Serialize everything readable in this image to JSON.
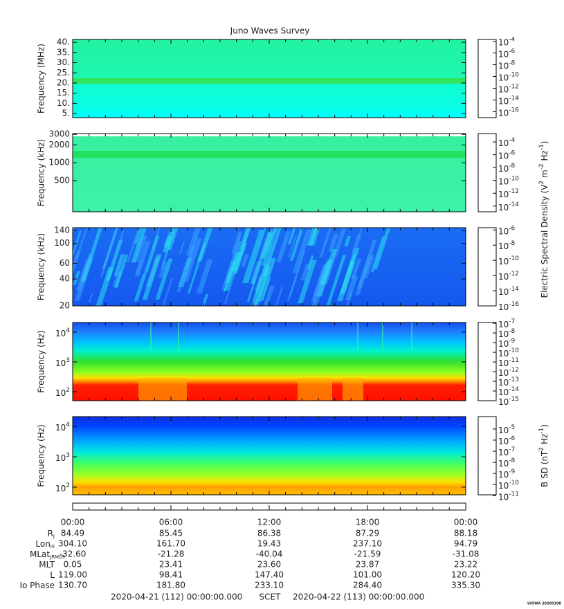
{
  "title": "Juno Waves Survey",
  "chart_data": [
    {
      "type": "spectrogram",
      "ylabel": "Frequency (MHz)",
      "ylog": false,
      "ylim": [
        3,
        41.4
      ],
      "yticks": [
        {
          "value": 40,
          "label": "40."
        },
        {
          "value": 35,
          "label": "35."
        },
        {
          "value": 30,
          "label": "30."
        },
        {
          "value": 25,
          "label": "25."
        },
        {
          "value": 20,
          "label": "20."
        },
        {
          "value": 15,
          "label": "15."
        },
        {
          "value": 10,
          "label": "10."
        },
        {
          "value": 5,
          "label": "5."
        }
      ],
      "clog": true,
      "clim": [
        1e-17,
        0.0002
      ],
      "cticks": [
        {
          "value": 0.0001,
          "label": "10",
          "sup": "-4"
        },
        {
          "value": 1e-06,
          "label": "10",
          "sup": "-6"
        },
        {
          "value": 1e-08,
          "label": "10",
          "sup": "-8"
        },
        {
          "value": 1e-10,
          "label": "10",
          "sup": "-10"
        },
        {
          "value": 1e-12,
          "label": "10",
          "sup": "-12"
        },
        {
          "value": 1e-14,
          "label": "10",
          "sup": "-14"
        },
        {
          "value": 1e-16,
          "label": "10",
          "sup": "-16"
        }
      ]
    },
    {
      "type": "spectrogram",
      "ylabel": "Frequency (kHz)",
      "ylog": true,
      "ylim": [
        150,
        3100
      ],
      "yticks": [
        3000,
        2000,
        1000,
        500
      ],
      "clog": true,
      "clim": [
        1.3e-15,
        0.002
      ],
      "cticks": [
        {
          "value": 0.0001,
          "label": "10",
          "sup": "-4"
        },
        {
          "value": 1e-06,
          "label": "10",
          "sup": "-6"
        },
        {
          "value": 1e-08,
          "label": "10",
          "sup": "-8"
        },
        {
          "value": 1e-10,
          "label": "10",
          "sup": "-10"
        },
        {
          "value": 1e-12,
          "label": "10",
          "sup": "-12"
        },
        {
          "value": 1e-14,
          "label": "10",
          "sup": "-14"
        }
      ],
      "colorbar_label": [
        "Electric Spectral Density (V",
        "2",
        " m",
        "-2",
        " Hz",
        "-1",
        ")"
      ]
    },
    {
      "type": "spectrogram",
      "ylabel": "Frequency (kHz)",
      "ylog": true,
      "ylim": [
        20,
        150
      ],
      "yticks": [
        140,
        100,
        60,
        40,
        20
      ],
      "clog": true,
      "clim": [
        1e-16,
        2e-06
      ],
      "cticks": [
        {
          "value": 1e-06,
          "label": "10",
          "sup": "-6"
        },
        {
          "value": 1e-08,
          "label": "10",
          "sup": "-8"
        },
        {
          "value": 1e-10,
          "label": "10",
          "sup": "-10"
        },
        {
          "value": 1e-12,
          "label": "10",
          "sup": "-12"
        },
        {
          "value": 1e-14,
          "label": "10",
          "sup": "-14"
        },
        {
          "value": 1e-16,
          "label": "10",
          "sup": "-16"
        }
      ]
    },
    {
      "type": "spectrogram",
      "ylabel": "Frequency (Hz)",
      "ylog": true,
      "ylim": [
        50,
        21000
      ],
      "yticks": [
        {
          "value": 10000,
          "label": "10",
          "sup": "4"
        },
        {
          "value": 1000,
          "label": "10",
          "sup": "3"
        },
        {
          "value": 100,
          "label": "10",
          "sup": "2"
        }
      ],
      "clog": true,
      "clim": [
        1e-15,
        1.2e-07
      ],
      "cticks": [
        {
          "value": 1e-07,
          "label": "10",
          "sup": "-7"
        },
        {
          "value": 1e-08,
          "label": "10",
          "sup": "-8"
        },
        {
          "value": 1e-09,
          "label": "10",
          "sup": "-9"
        },
        {
          "value": 1e-10,
          "label": "10",
          "sup": "-10"
        },
        {
          "value": 1e-11,
          "label": "10",
          "sup": "-11"
        },
        {
          "value": 1e-12,
          "label": "10",
          "sup": "-12"
        },
        {
          "value": 1e-13,
          "label": "10",
          "sup": "-13"
        },
        {
          "value": 1e-14,
          "label": "10",
          "sup": "-14"
        },
        {
          "value": 1e-15,
          "label": "10",
          "sup": "-15"
        }
      ]
    },
    {
      "type": "spectrogram",
      "ylabel": "Frequency (Hz)",
      "ylog": true,
      "ylim": [
        56,
        21000
      ],
      "yticks": [
        {
          "value": 10000,
          "label": "10",
          "sup": "4"
        },
        {
          "value": 1000,
          "label": "10",
          "sup": "3"
        },
        {
          "value": 100,
          "label": "10",
          "sup": "2"
        }
      ],
      "clog": true,
      "clim": [
        1.2e-11,
        0.00013
      ],
      "cticks": [
        {
          "value": 1e-05,
          "label": "10",
          "sup": "-5"
        },
        {
          "value": 1e-06,
          "label": "10",
          "sup": "-6"
        },
        {
          "value": 1e-07,
          "label": "10",
          "sup": "-7"
        },
        {
          "value": 1e-08,
          "label": "10",
          "sup": "-8"
        },
        {
          "value": 1e-09,
          "label": "10",
          "sup": "-9"
        },
        {
          "value": 1e-10,
          "label": "10",
          "sup": "-10"
        },
        {
          "value": 1e-11,
          "label": "10",
          "sup": "-11"
        }
      ],
      "colorbar_label": [
        "B SD (nT",
        "2",
        " Hz",
        "-1",
        ")"
      ]
    }
  ],
  "ephemeris": {
    "times": [
      "00:00",
      "06:00",
      "12:00",
      "18:00",
      "00:00"
    ],
    "rows": [
      {
        "label": "R",
        "sub": "J",
        "values": [
          "84.49",
          "85.45",
          "86.38",
          "87.29",
          "88.18"
        ]
      },
      {
        "label": "Lon",
        "sub": "III",
        "values": [
          "304.10",
          "161.70",
          "19.43",
          "237.10",
          "94.79"
        ]
      },
      {
        "label": "MLat",
        "sub": "JRM09",
        "values": [
          "-32.60",
          "-21.28",
          "-40.04",
          "-21.59",
          "-31.08"
        ]
      },
      {
        "label": "MLT",
        "values": [
          "0.05",
          "23.41",
          "23.60",
          "23.87",
          "23.22"
        ]
      },
      {
        "label": "L",
        "values": [
          "119.00",
          "98.41",
          "147.40",
          "101.00",
          "120.20"
        ]
      },
      {
        "label": "Io Phase",
        "values": [
          "130.70",
          "181.80",
          "233.10",
          "284.40",
          "335.30"
        ]
      }
    ]
  },
  "footer": {
    "start": "2020-04-21 (112) 00:00:00.000",
    "scet": "SCET",
    "end": "2020-04-22 (113) 00:00:00.000"
  },
  "stamp": "UIOWA 20200308"
}
